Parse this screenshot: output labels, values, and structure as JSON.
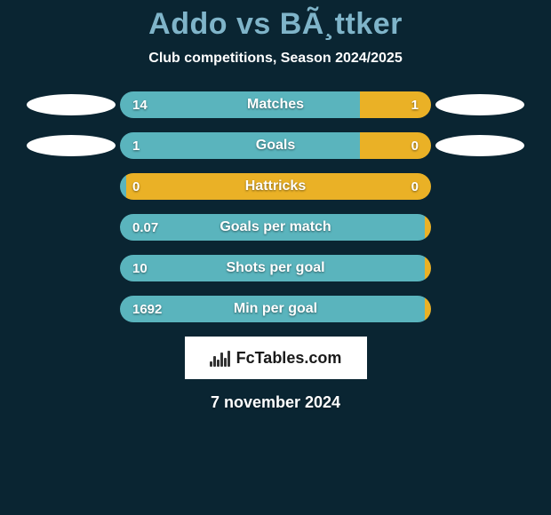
{
  "background_color": "#0a2532",
  "text_color": "#ffffff",
  "title": {
    "text": "Addo vs BÃ¸ttker",
    "fontsize": 34,
    "color": "#7fb4c9"
  },
  "subtitle": {
    "text": "Club competitions, Season 2024/2025",
    "fontsize": 16,
    "color": "#ffffff"
  },
  "bar_fontsize": 16,
  "value_fontsize": 15,
  "colors": {
    "player1": "#5ab4bd",
    "player2": "#eab126",
    "ellipse": "#ffffff"
  },
  "rows": [
    {
      "label": "Matches",
      "v1": "14",
      "v2": "1",
      "split": 77,
      "show_ellipses": true
    },
    {
      "label": "Goals",
      "v1": "1",
      "v2": "0",
      "split": 77,
      "show_ellipses": true
    },
    {
      "label": "Hattricks",
      "v1": "0",
      "v2": "0",
      "split": 2,
      "show_ellipses": false
    },
    {
      "label": "Goals per match",
      "v1": "0.07",
      "v2": "",
      "split": 98,
      "show_ellipses": false
    },
    {
      "label": "Shots per goal",
      "v1": "10",
      "v2": "",
      "split": 98,
      "show_ellipses": false
    },
    {
      "label": "Min per goal",
      "v1": "1692",
      "v2": "",
      "split": 98,
      "show_ellipses": false
    }
  ],
  "brand": {
    "text": "FcTables.com",
    "background": "#ffffff",
    "text_color": "#1a1a1a",
    "fontsize": 18
  },
  "date": {
    "text": "7 november 2024",
    "fontsize": 18,
    "color": "#ffffff"
  }
}
